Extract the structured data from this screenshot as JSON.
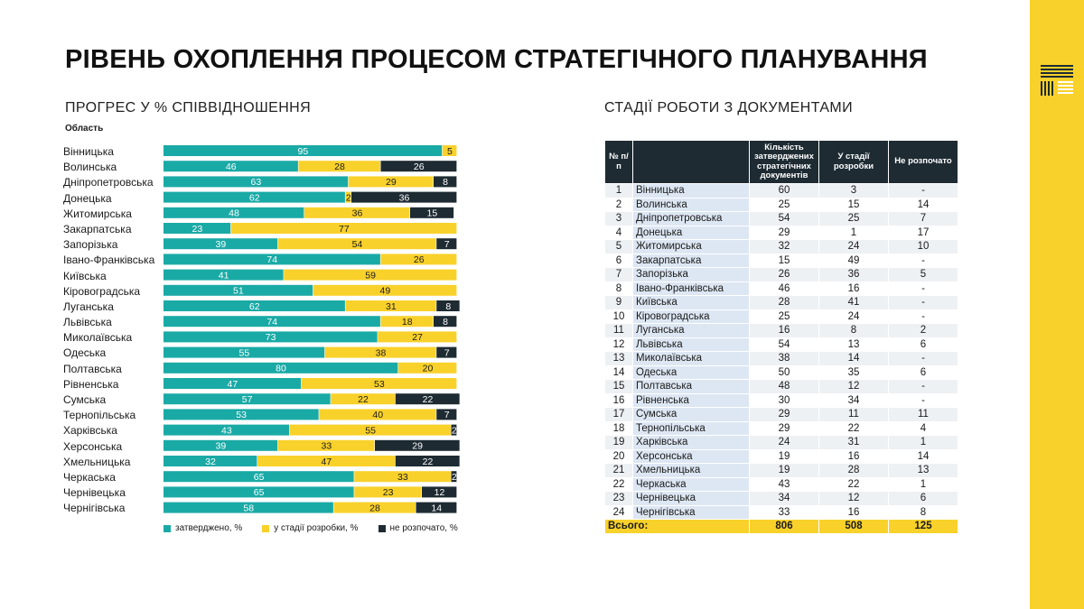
{
  "title": "РІВЕНЬ ОХОПЛЕННЯ ПРОЦЕСОМ СТРАТЕГІЧНОГО ПЛАНУВАННЯ",
  "progress_subtitle": "ПРОГРЕС У % СПІВВІДНОШЕННЯ",
  "docs_subtitle": "СТАДІЇ РОБОТИ З ДОКУМЕНТАМИ",
  "colors": {
    "approved": "#1aaaa6",
    "in_progress": "#f9d12b",
    "not_started": "#1e2b33",
    "accent": "#f9d12b"
  },
  "chart_data": {
    "type": "bar",
    "orientation": "horizontal",
    "stacked": true,
    "ylabel": "Область",
    "xlim": [
      0,
      100
    ],
    "grid": false,
    "legend_position": "bottom",
    "categories": [
      "Вінницька",
      "Волинська",
      "Дніпропетровська",
      "Донецька",
      "Житомирська",
      "Закарпатська",
      "Запорізька",
      "Івано-Франківська",
      "Київська",
      "Кіровоградська",
      "Луганська",
      "Львівська",
      "Миколаївська",
      "Одеська",
      "Полтавська",
      "Рівненська",
      "Сумська",
      "Тернопільська",
      "Харківська",
      "Херсонська",
      "Хмельницька",
      "Черкаська",
      "Чернівецька",
      "Чернігівська"
    ],
    "series": [
      {
        "name": "затверджено, %",
        "values": [
          95,
          46,
          63,
          62,
          48,
          23,
          39,
          74,
          41,
          51,
          62,
          74,
          73,
          55,
          80,
          47,
          57,
          53,
          43,
          39,
          32,
          65,
          65,
          58
        ]
      },
      {
        "name": "у стадії розробки, %",
        "values": [
          5,
          28,
          29,
          2,
          36,
          77,
          54,
          26,
          59,
          49,
          31,
          18,
          27,
          38,
          20,
          53,
          22,
          40,
          55,
          33,
          47,
          33,
          23,
          28
        ]
      },
      {
        "name": "не розпочато, %",
        "values": [
          0,
          26,
          8,
          36,
          15,
          0,
          7,
          0,
          0,
          0,
          8,
          8,
          0,
          7,
          0,
          0,
          22,
          7,
          2,
          29,
          22,
          2,
          12,
          14
        ]
      }
    ]
  },
  "table": {
    "headers": [
      "№ п/п",
      "",
      "Кількість затверджених стратегічних документів",
      "У стадії розробки",
      "Не розпочато"
    ],
    "rows": [
      [
        "1",
        "Вінницька",
        "60",
        "3",
        "-"
      ],
      [
        "2",
        "Волинська",
        "25",
        "15",
        "14"
      ],
      [
        "3",
        "Дніпропетровська",
        "54",
        "25",
        "7"
      ],
      [
        "4",
        "Донецька",
        "29",
        "1",
        "17"
      ],
      [
        "5",
        "Житомирська",
        "32",
        "24",
        "10"
      ],
      [
        "6",
        "Закарпатська",
        "15",
        "49",
        "-"
      ],
      [
        "7",
        "Запорізька",
        "26",
        "36",
        "5"
      ],
      [
        "8",
        "Івано-Франківська",
        "46",
        "16",
        "-"
      ],
      [
        "9",
        "Київська",
        "28",
        "41",
        "-"
      ],
      [
        "10",
        "Кіровоградська",
        "25",
        "24",
        "-"
      ],
      [
        "11",
        "Луганська",
        "16",
        "8",
        "2"
      ],
      [
        "12",
        "Львівська",
        "54",
        "13",
        "6"
      ],
      [
        "13",
        "Миколаївська",
        "38",
        "14",
        "-"
      ],
      [
        "14",
        "Одеська",
        "50",
        "35",
        "6"
      ],
      [
        "15",
        "Полтавська",
        "48",
        "12",
        "-"
      ],
      [
        "16",
        "Рівненська",
        "30",
        "34",
        "-"
      ],
      [
        "17",
        "Сумська",
        "29",
        "11",
        "11"
      ],
      [
        "18",
        "Тернопільська",
        "29",
        "22",
        "4"
      ],
      [
        "19",
        "Харківська",
        "24",
        "31",
        "1"
      ],
      [
        "20",
        "Херсонська",
        "19",
        "16",
        "14"
      ],
      [
        "21",
        "Хмельницька",
        "19",
        "28",
        "13"
      ],
      [
        "22",
        "Черкаська",
        "43",
        "22",
        "1"
      ],
      [
        "23",
        "Чернівецька",
        "34",
        "12",
        "6"
      ],
      [
        "24",
        "Чернігівська",
        "33",
        "16",
        "8"
      ]
    ],
    "total": {
      "label": "Всього:",
      "approved": "806",
      "in_progress": "508",
      "not_started": "125"
    }
  }
}
